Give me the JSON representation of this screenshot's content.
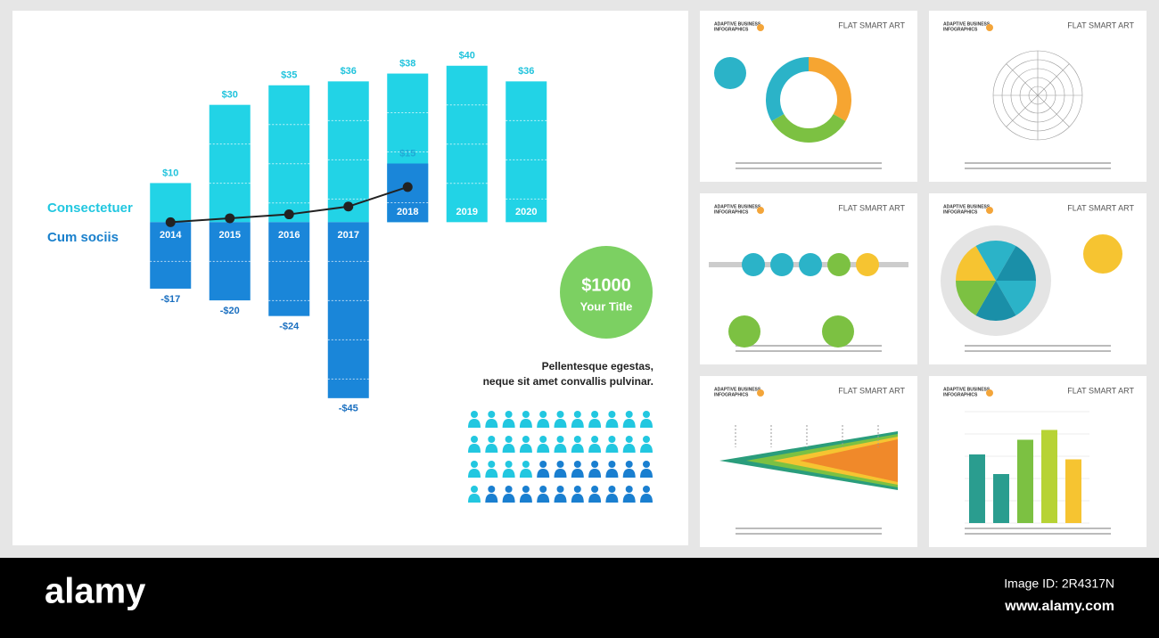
{
  "chart_data": {
    "type": "bar",
    "categories": [
      "2014",
      "2015",
      "2016",
      "2017",
      "2018",
      "2019",
      "2020"
    ],
    "series": [
      {
        "name": "Consectetuer",
        "color": "#22d3e6",
        "values": [
          10,
          30,
          35,
          36,
          38,
          40,
          36
        ],
        "value_labels": [
          "$10",
          "$30",
          "$35",
          "$36",
          "$38",
          "$40",
          "$36"
        ]
      },
      {
        "name": "Cum sociis",
        "color": "#1a86d9",
        "values": [
          -17,
          -20,
          -24,
          -45,
          15,
          null,
          null
        ],
        "value_labels": [
          "-$17",
          "-$20",
          "-$24",
          "-$45",
          "$15",
          null,
          null
        ]
      },
      {
        "color": "#222222",
        "values": [
          0,
          1,
          2,
          4,
          9,
          null,
          null
        ]
      }
    ],
    "ylim": [
      -48,
      42
    ]
  },
  "badge": {
    "value": "$1000",
    "label": "Your Title"
  },
  "caption": [
    "Pellentesque egestas,",
    "neque sit amet convallis pulvinar."
  ],
  "thumbnails": [
    {
      "header": "FLAT SMART ART",
      "brand": [
        "ADAPTIVE BUSINESS",
        "INFOGRAPHICS"
      ]
    },
    {
      "header": "FLAT SMART ART",
      "brand": [
        "ADAPTIVE BUSINESS",
        "INFOGRAPHICS"
      ]
    },
    {
      "header": "FLAT SMART ART",
      "brand": [
        "ADAPTIVE BUSINESS",
        "INFOGRAPHICS"
      ]
    },
    {
      "header": "FLAT SMART ART",
      "brand": [
        "ADAPTIVE BUSINESS",
        "INFOGRAPHICS"
      ]
    },
    {
      "header": "FLAT SMART ART",
      "brand": [
        "ADAPTIVE BUSINESS",
        "INFOGRAPHICS"
      ]
    },
    {
      "header": "FLAT SMART ART",
      "brand": [
        "ADAPTIVE BUSINESS",
        "INFOGRAPHICS"
      ]
    }
  ],
  "footer": {
    "logo": "alamy",
    "image_id": "Image ID: 2R4317N",
    "url": "www.alamy.com"
  }
}
